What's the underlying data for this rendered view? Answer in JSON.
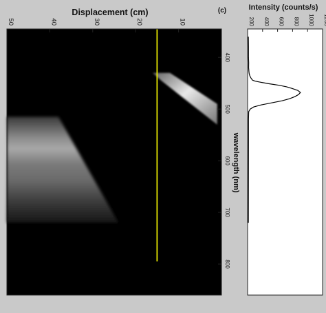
{
  "panel_label": "(c)",
  "chart_data": [
    {
      "type": "heatmap",
      "xlabel": "Displacement (cm)",
      "ylabel": "wavelength (nm)",
      "xlim": [
        50,
        0
      ],
      "ylim": [
        345,
        860
      ],
      "x_ticks": [
        50,
        40,
        30,
        20,
        10
      ],
      "x_tick_labels": [
        "50",
        "40",
        "30",
        "20",
        "10"
      ],
      "y_ticks": [
        400,
        500,
        600,
        700,
        800
      ],
      "y_tick_labels": [
        "400",
        "500",
        "600",
        "700",
        "800"
      ],
      "colormap": "grayscale",
      "background_color": "#000000",
      "marker_line": {
        "x": 15,
        "color": "#e8e800"
      },
      "bright_regions": [
        {
          "description_role": "narrow band",
          "polygon": [
            [
              16,
              430
            ],
            [
              12,
              430
            ],
            [
              1,
              490
            ],
            [
              1,
              530
            ],
            [
              14,
              445
            ]
          ]
        },
        {
          "description_role": "broad band",
          "polygon": [
            [
              50,
              515
            ],
            [
              38,
              515
            ],
            [
              24,
              720
            ],
            [
              50,
              720
            ]
          ]
        }
      ]
    },
    {
      "type": "line",
      "xlabel": "Intensity (counts/s)",
      "ylabel": "",
      "xlim": [
        200,
        1200
      ],
      "ylim": [
        345,
        860
      ],
      "x_ticks": [
        200,
        400,
        600,
        800,
        1000,
        1200
      ],
      "x_tick_labels": [
        "200",
        "400",
        "600",
        "800",
        "1000",
        "1200"
      ],
      "line_color": "#000000",
      "series": [
        {
          "x": [
            210,
            212,
            212,
            215,
            214,
            218,
            222,
            230,
            245,
            265,
            300,
            370,
            480,
            620,
            720,
            790,
            830,
            870,
            905,
            880,
            830,
            760,
            660,
            520,
            380,
            280,
            235,
            215,
            212,
            212,
            210
          ],
          "y": [
            360,
            380,
            400,
            410,
            420,
            428,
            432,
            436,
            440,
            444,
            446,
            448,
            451,
            454,
            457,
            460,
            462,
            464,
            468,
            472,
            476,
            480,
            484,
            488,
            492,
            496,
            500,
            505,
            520,
            560,
            720
          ]
        }
      ]
    }
  ]
}
